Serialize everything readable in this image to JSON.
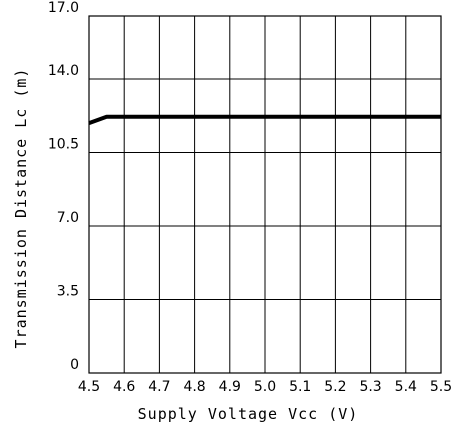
{
  "chart_data": {
    "type": "line",
    "title": "",
    "xlabel": "Supply Voltage Vcc (V)",
    "ylabel": "Transmission Distance Lc (m)",
    "xlim": [
      4.5,
      5.5
    ],
    "ylim": [
      0,
      17.0
    ],
    "grid": true,
    "x_ticks": [
      4.5,
      4.6,
      4.7,
      4.8,
      4.9,
      5.0,
      5.1,
      5.2,
      5.3,
      5.4,
      5.5
    ],
    "x_tick_labels": [
      "4.5",
      "4.6",
      "4.7",
      "4.8",
      "4.9",
      "5.0",
      "5.1",
      "5.2",
      "5.3",
      "5.4",
      "5.5"
    ],
    "y_ticks": [
      0,
      3.5,
      7.0,
      10.5,
      14.0,
      17.0
    ],
    "y_tick_labels": [
      "0",
      "3.5",
      "7.0",
      "10.5",
      "14.0",
      "17.0"
    ],
    "series": [
      {
        "x": [
          4.5,
          4.55,
          4.6,
          4.7,
          4.8,
          4.9,
          5.0,
          5.1,
          5.2,
          5.3,
          5.4,
          5.5
        ],
        "values": [
          11.9,
          12.2,
          12.2,
          12.2,
          12.2,
          12.2,
          12.2,
          12.2,
          12.2,
          12.2,
          12.2,
          12.2
        ]
      }
    ]
  }
}
